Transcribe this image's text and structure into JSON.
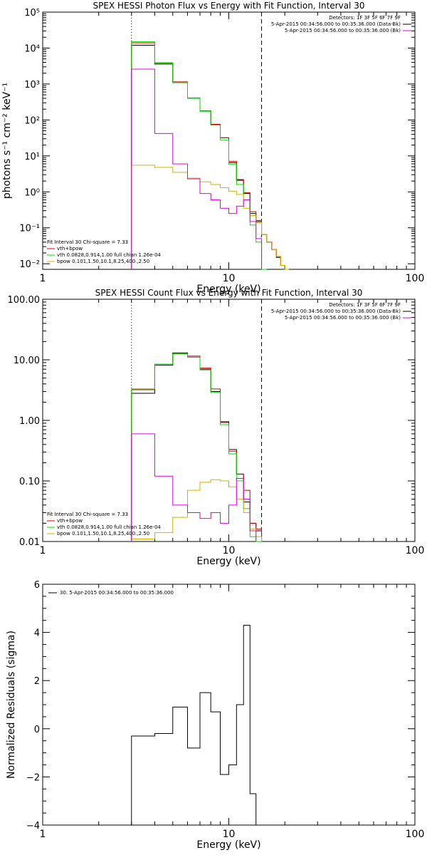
{
  "colors": {
    "data": "#000000",
    "vth_sum": "#d90000",
    "vth": "#00e000",
    "bpow": "#d4b000",
    "bk": "#e000e0"
  },
  "chart_data": [
    {
      "type": "line",
      "title": "SPEX HESSI Photon Flux vs Energy with Fit Function, Interval 30",
      "xlabel": "Energy (keV)",
      "ylabel": "photons s⁻¹ cm⁻² keV⁻¹",
      "xscale": "log",
      "yscale": "log",
      "xlim": [
        1,
        100
      ],
      "ylim": [
        0.007,
        100000
      ],
      "xticks": [
        1,
        10,
        100
      ],
      "xtick_labels": [
        "1",
        "10",
        "100"
      ],
      "yticks": [
        0.01,
        0.1,
        1,
        10,
        100,
        1000,
        10000,
        100000
      ],
      "ytick_labels": [
        "10⁻²",
        "10⁻¹",
        "10⁰",
        "10¹",
        "10²",
        "10³",
        "10⁴",
        "10⁵"
      ],
      "vlines": [
        {
          "x": 3,
          "style": "dotted"
        },
        {
          "x": 15,
          "style": "dashed"
        }
      ],
      "info_top_right": [
        "Detectors: 1F 3F 5F 6F 7F 9F",
        "5-Apr-2015 00:34:56.000 to 00:35:36.000 (Data-Bk)",
        "5-Apr-2015 00:34:56.000 to 00:35:36.000 (Bk)"
      ],
      "info_bottom_left": [
        "Fit Interval 30   Chi-square = 7.33",
        "vth+bpow",
        "vth 0.0828,0.914,1.00  full chian 1.26e-04",
        "bpow 0.101,1.50,10.1,8.25,400.,2.50"
      ],
      "edges": [
        3,
        4,
        5,
        6,
        7,
        8,
        9,
        10,
        11,
        12,
        13,
        14,
        15,
        16,
        17,
        18,
        19,
        20,
        21
      ],
      "series": [
        {
          "name": "5-Apr-2015 00:34:56.000 to 00:35:36.000 (Data-Bk)",
          "color_key": "data",
          "values": [
            12000,
            3600,
            1100,
            400,
            180,
            75,
            32,
            6.5,
            2.1,
            0.9,
            0.25,
            0.15,
            0.065,
            0.04,
            0.025,
            0.015,
            0.009,
            0.005
          ]
        },
        {
          "name": "vth+bpow",
          "color_key": "vth_sum",
          "values": [
            14000,
            3900,
            1150,
            410,
            180,
            76,
            32,
            7,
            2.2,
            0.95,
            0.28,
            0.16,
            0.065,
            0.04,
            0.025,
            0.016,
            0.009,
            0.005
          ]
        },
        {
          "name": "vth 0.0828,0.914,1.00  full chian 1.26e-04",
          "color_key": "vth",
          "values": [
            15000,
            3800,
            1100,
            400,
            175,
            72,
            28,
            5.8,
            1.6,
            0.6,
            0.12,
            0.04,
            0.005
          ]
        },
        {
          "name": "bpow 0.101,1.50,10.1,8.25,400.,2.50",
          "color_key": "bpow",
          "values": [
            5.5,
            4.8,
            3.5,
            2.4,
            1.9,
            1.6,
            1.3,
            1.05,
            0.85,
            0.35,
            0.22,
            0.14,
            0.065,
            0.04,
            0.025,
            0.016,
            0.009,
            0.005
          ]
        },
        {
          "name": "5-Apr-2015 00:34:56.000 to 00:35:36.000 (Bk)",
          "color_key": "bk",
          "values": [
            2600,
            42,
            6,
            2.3,
            0.9,
            0.6,
            0.35,
            0.25,
            0.4,
            0.6,
            0.15,
            0.05
          ]
        }
      ]
    },
    {
      "type": "line",
      "title": "SPEX HESSI Count Flux vs Energy with Fit Function, Interval 30",
      "xlabel": "Energy (keV)",
      "ylabel": "",
      "xscale": "log",
      "yscale": "log",
      "xlim": [
        1,
        100
      ],
      "ylim": [
        0.01,
        100
      ],
      "xticks": [
        1,
        10,
        100
      ],
      "xtick_labels": [
        "1",
        "10",
        "100"
      ],
      "yticks": [
        0.01,
        0.1,
        1,
        10,
        100
      ],
      "ytick_labels": [
        "0.01",
        "0.10",
        "1.00",
        "10.00",
        "100.00"
      ],
      "vlines": [
        {
          "x": 3,
          "style": "dotted"
        },
        {
          "x": 15,
          "style": "dashed"
        }
      ],
      "info_top_right": [
        "Detectors: 1F 3F 5F 6F 7F 9F",
        "5-Apr-2015 00:34:56.000 to 00:35:36.000 (Data-Bk)",
        "5-Apr-2015 00:34:56.000 to 00:35:36.000 (Bk)"
      ],
      "info_bottom_left": [
        "Fit Interval 30   Chi-square = 7.33",
        "vth+bpow",
        "vth 0.0828,0.914,1.00  full chian 1.26e-04",
        "bpow 0.101,1.50,10.1,8.25,400.,2.50"
      ],
      "edges": [
        3,
        4,
        5,
        6,
        7,
        8,
        9,
        10,
        11,
        12,
        13,
        14,
        15
      ],
      "series": [
        {
          "name": "5-Apr-2015 00:34:56.000 to 00:35:36.000 (Data-Bk)",
          "color_key": "data",
          "values": [
            2.8,
            8.2,
            13,
            11.5,
            7,
            3,
            0.95,
            0.33,
            0.13,
            0.045,
            0.02,
            0.015
          ]
        },
        {
          "name": "vth+bpow",
          "color_key": "vth_sum",
          "values": [
            3.2,
            8.5,
            12.5,
            11.5,
            7.3,
            3.3,
            0.92,
            0.31,
            0.13,
            0.07,
            0.02,
            0.016
          ]
        },
        {
          "name": "vth 0.0828,0.914,1.00  full chian 1.26e-04",
          "color_key": "vth",
          "values": [
            3.3,
            8.5,
            12.5,
            11,
            6.8,
            2.9,
            0.85,
            0.28,
            0.1,
            0.035,
            0.012,
            0.01
          ]
        },
        {
          "name": "bpow 0.101,1.50,10.1,8.25,400.,2.50",
          "color_key": "bpow",
          "values": [
            0.011,
            0.014,
            0.025,
            0.07,
            0.095,
            0.105,
            0.1,
            0.08,
            0.05,
            0.03,
            0.016,
            0.012
          ]
        },
        {
          "name": "5-Apr-2015 00:34:56.000 to 00:35:36.000 (Bk)",
          "color_key": "bk",
          "values": [
            0.6,
            0.12,
            0.04,
            0.03,
            0.024,
            0.03,
            0.02,
            0.04,
            0.11,
            0.05,
            0.015
          ]
        }
      ]
    },
    {
      "type": "line",
      "title": "",
      "xlabel": "Energy (keV)",
      "ylabel": "Normalized Residuals (sigma)",
      "xscale": "log",
      "yscale": "linear",
      "xlim": [
        1,
        100
      ],
      "ylim": [
        -4,
        6
      ],
      "xticks": [
        1,
        10,
        100
      ],
      "xtick_labels": [
        "1",
        "10",
        "100"
      ],
      "yticks": [
        -4,
        -2,
        0,
        2,
        4,
        6
      ],
      "ytick_labels": [
        "−4",
        "−2",
        "0",
        "2",
        "4",
        "6"
      ],
      "legend": "30.  5-Apr-2015 00:34:56.000 to 00:35:36.000",
      "edges": [
        3,
        4,
        5,
        6,
        7,
        8,
        9,
        10,
        11,
        12,
        13,
        14,
        15
      ],
      "series": [
        {
          "name": "30.  5-Apr-2015 00:34:56.000 to 00:35:36.000",
          "color_key": "data",
          "values": [
            -0.3,
            -0.2,
            0.9,
            -0.8,
            1.5,
            0.7,
            -1.9,
            -1.5,
            1.0,
            4.3,
            -2.7
          ]
        }
      ]
    }
  ]
}
